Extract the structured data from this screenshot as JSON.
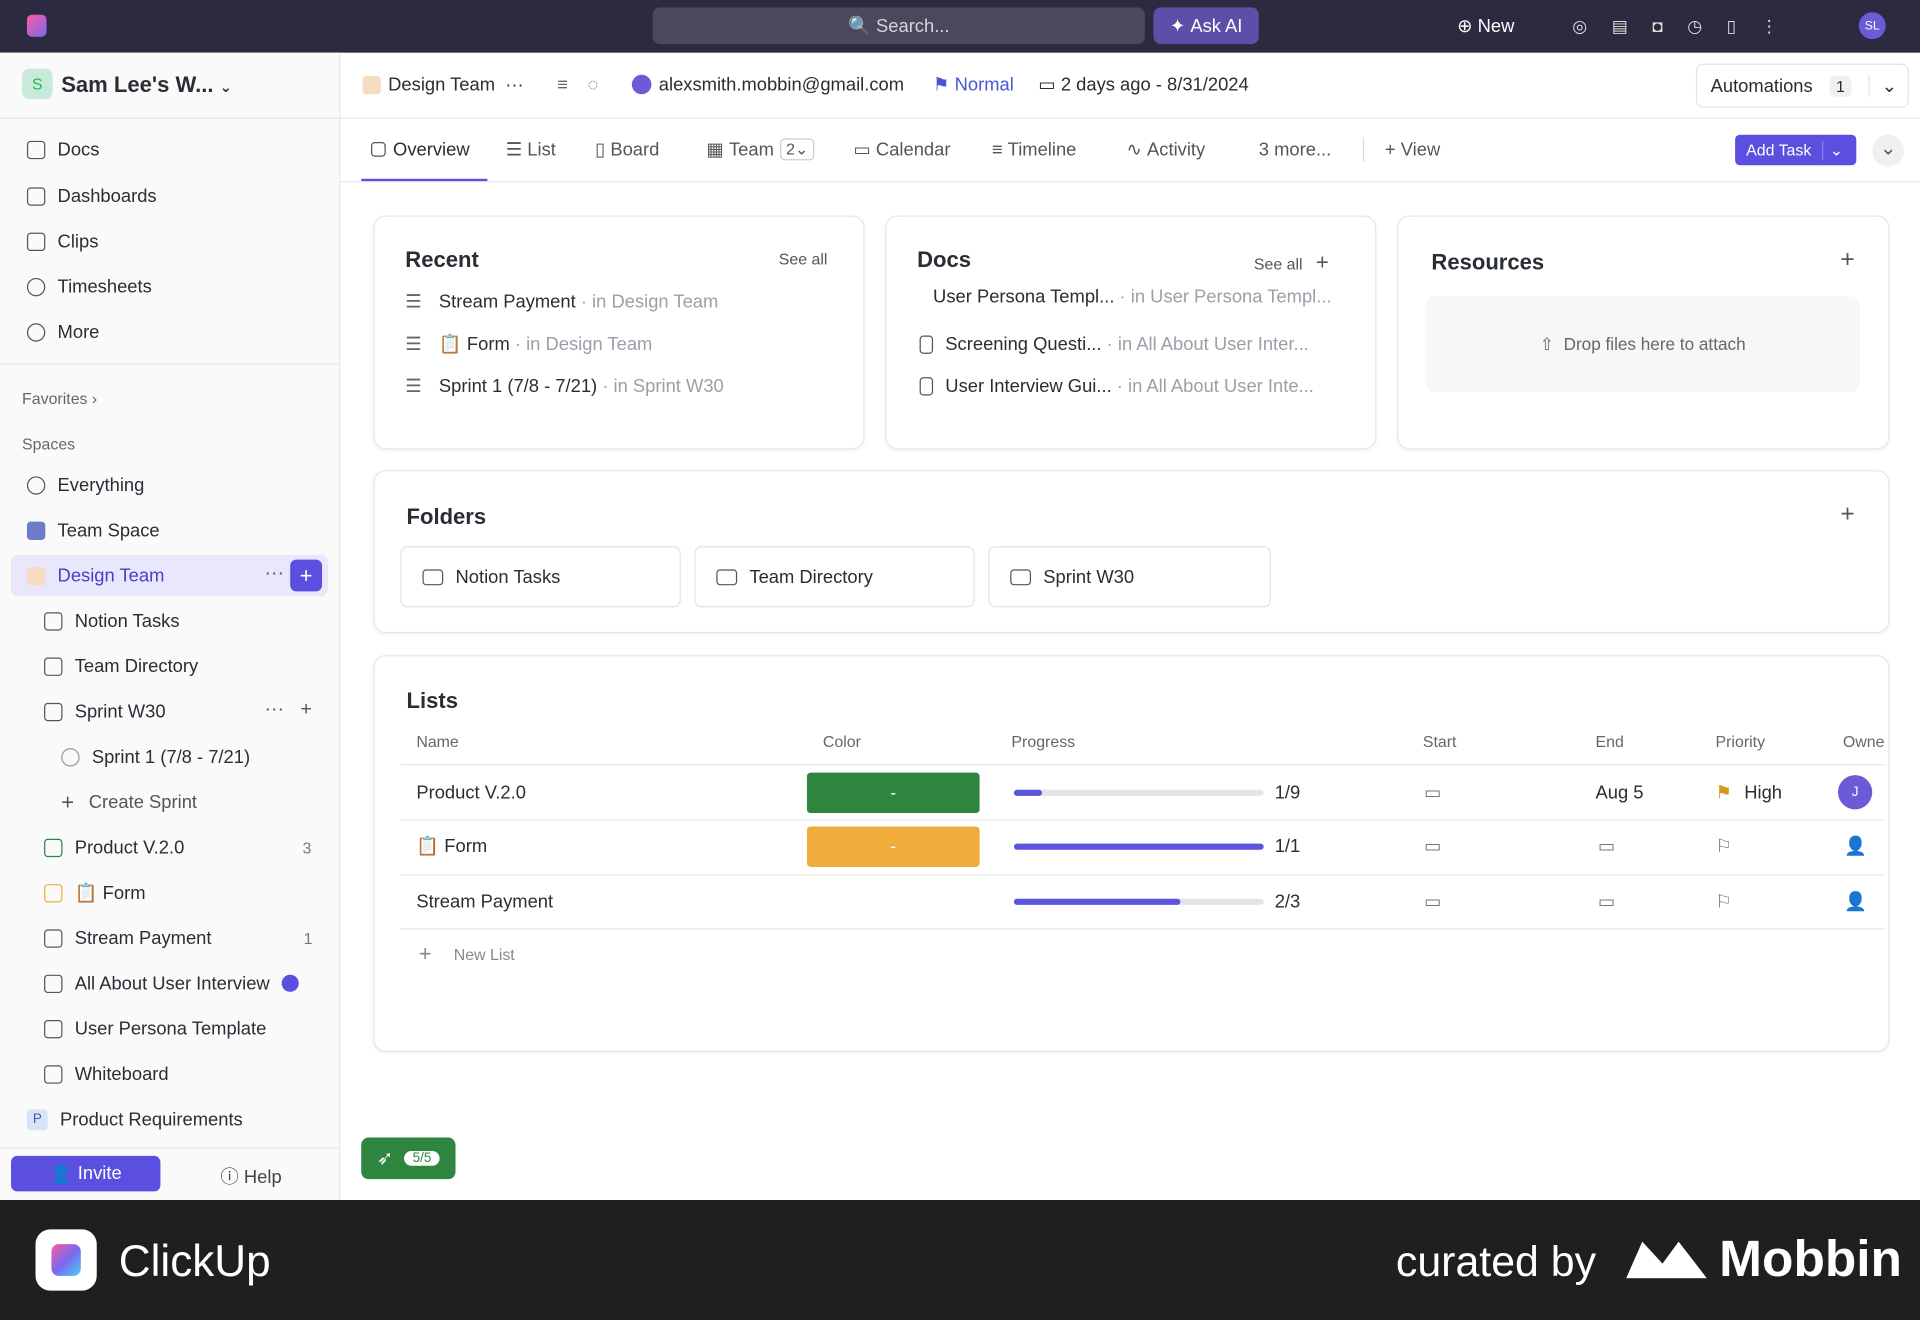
{
  "topbar": {
    "search": "Search...",
    "ask_ai": "Ask AI",
    "new": "New",
    "avatar": "SL"
  },
  "sidebar": {
    "workspace": {
      "initial": "S",
      "name": "Sam Lee's W..."
    },
    "nav": [
      "Docs",
      "Dashboards",
      "Clips",
      "Timesheets",
      "More"
    ],
    "favorites": "Favorites",
    "spaces": "Spaces",
    "tree": [
      {
        "label": "Everything"
      },
      {
        "label": "Team Space"
      },
      {
        "label": "Design Team"
      },
      {
        "label": "Notion Tasks"
      },
      {
        "label": "Team Directory"
      },
      {
        "label": "Sprint W30"
      },
      {
        "label": "Sprint 1 (7/8 - 7/21)"
      },
      {
        "label": "Create Sprint"
      },
      {
        "label": "Product V.2.0",
        "count": 3
      },
      {
        "label": "📋 Form"
      },
      {
        "label": "Stream Payment",
        "count": 1
      },
      {
        "label": "All About User Interview"
      },
      {
        "label": "User Persona Template"
      },
      {
        "label": "Whiteboard"
      },
      {
        "label": "Product Requirements",
        "initial": "P"
      }
    ],
    "invite": "Invite",
    "help": "Help"
  },
  "header": {
    "space": "Design Team",
    "email": "alexsmith.mobbin@gmail.com",
    "priority": "Normal",
    "dates": "2 days ago - 8/31/2024",
    "automations": "Automations",
    "automations_count": 1
  },
  "tabs": {
    "items": [
      "Overview",
      "List",
      "Board",
      "Team",
      "Calendar",
      "Timeline",
      "Activity",
      "3 more..."
    ],
    "team_count": 2,
    "view": "View",
    "add_task": "Add Task"
  },
  "recent": {
    "title": "Recent",
    "see_all": "See all",
    "items": [
      {
        "name": "Stream Payment",
        "location": "in Design Team"
      },
      {
        "name": "📋 Form",
        "location": "in Design Team"
      },
      {
        "name": "Sprint 1 (7/8 - 7/21)",
        "location": "in Sprint W30"
      }
    ]
  },
  "docs": {
    "title": "Docs",
    "see_all": "See all",
    "items": [
      {
        "name": "User Persona Templ...",
        "location": "in User Persona Templ..."
      },
      {
        "name": "Screening Questi...",
        "location": "in All About User Inter..."
      },
      {
        "name": "User Interview Gui...",
        "location": "in All About User Inte..."
      }
    ]
  },
  "resources": {
    "title": "Resources",
    "drop": "Drop files here to attach"
  },
  "folders": {
    "title": "Folders",
    "items": [
      "Notion Tasks",
      "Team Directory",
      "Sprint W30"
    ]
  },
  "lists": {
    "title": "Lists",
    "columns": [
      "Name",
      "Color",
      "Progress",
      "Start",
      "End",
      "Priority",
      "Owne"
    ],
    "rows": [
      {
        "name": "Product V.2.0",
        "color": "-",
        "swatch": "#2e8540",
        "progress": "1/9",
        "end": "Aug 5",
        "priority": "High",
        "owner": "J"
      },
      {
        "name": "📋 Form",
        "color": "-",
        "swatch": "#f0ad3c",
        "progress": "1/1"
      },
      {
        "name": "Stream Payment",
        "progress": "2/3"
      }
    ],
    "new_list": "New List"
  },
  "onboarding": "5/5",
  "footer": {
    "brand": "ClickUp",
    "curated": "curated by",
    "mobbin": "Mobbin"
  }
}
